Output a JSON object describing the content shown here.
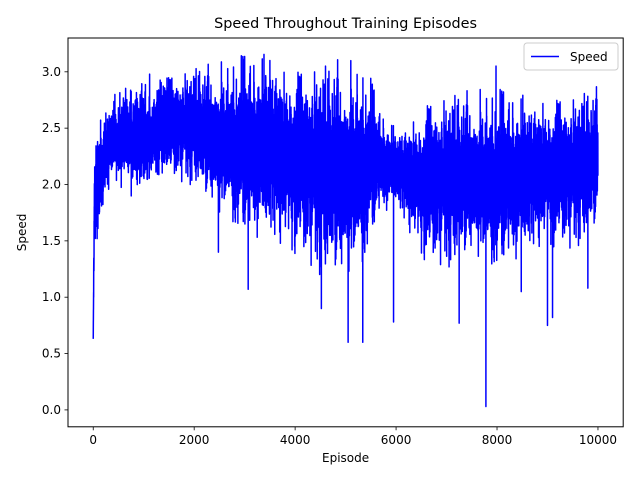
{
  "chart_data": {
    "type": "line",
    "title": "Speed Throughout Training Episodes",
    "xlabel": "Episode",
    "ylabel": "Speed",
    "xlim": [
      -500,
      10500
    ],
    "ylim": [
      -0.15,
      3.3
    ],
    "xticks": [
      0,
      2000,
      4000,
      6000,
      8000,
      10000
    ],
    "xtick_labels": [
      "0",
      "2000",
      "4000",
      "6000",
      "8000",
      "10000"
    ],
    "yticks": [
      0.0,
      0.5,
      1.0,
      1.5,
      2.0,
      2.5,
      3.0
    ],
    "ytick_labels": [
      "0.0",
      "0.5",
      "1.0",
      "1.5",
      "2.0",
      "2.5",
      "3.0"
    ],
    "grid": false,
    "legend_position": "upper right",
    "series": [
      {
        "name": "Speed",
        "color": "#0000ff",
        "n_points": 10000,
        "envelope": {
          "x": [
            0,
            20,
            50,
            100,
            200,
            400,
            700,
            1000,
            1500,
            2000,
            2500,
            3000,
            3500,
            4000,
            4500,
            5000,
            5300,
            5500,
            5700,
            6000,
            6300,
            6600,
            7000,
            7500,
            7800,
            8000,
            8500,
            9000,
            9500,
            10000
          ],
          "low": [
            0.62,
            1.3,
            1.45,
            1.5,
            1.85,
            2.1,
            1.95,
            1.95,
            2.1,
            2.05,
            1.75,
            1.65,
            1.6,
            1.5,
            1.3,
            1.2,
            1.3,
            1.6,
            1.8,
            1.85,
            1.6,
            1.4,
            1.35,
            1.4,
            1.3,
            1.35,
            1.45,
            1.55,
            1.5,
            1.65
          ],
          "high": [
            0.65,
            2.2,
            2.45,
            2.5,
            2.6,
            2.75,
            2.85,
            2.9,
            2.95,
            3.0,
            3.0,
            3.05,
            3.05,
            3.0,
            3.0,
            3.0,
            2.95,
            2.85,
            2.6,
            2.45,
            2.55,
            2.7,
            2.75,
            2.75,
            2.75,
            2.75,
            2.7,
            2.75,
            2.75,
            2.8
          ]
        },
        "spikes": [
          {
            "x": 0,
            "y": 0.63
          },
          {
            "x": 2480,
            "y": 1.4
          },
          {
            "x": 3070,
            "y": 1.07
          },
          {
            "x": 4520,
            "y": 0.9
          },
          {
            "x": 5050,
            "y": 0.6
          },
          {
            "x": 5340,
            "y": 0.6
          },
          {
            "x": 5950,
            "y": 0.78
          },
          {
            "x": 7250,
            "y": 0.77
          },
          {
            "x": 7780,
            "y": 0.03
          },
          {
            "x": 8480,
            "y": 1.05
          },
          {
            "x": 9000,
            "y": 0.75
          },
          {
            "x": 9100,
            "y": 0.82
          },
          {
            "x": 9800,
            "y": 1.08
          },
          {
            "x": 3500,
            "y": 3.1
          },
          {
            "x": 7980,
            "y": 3.05
          }
        ]
      }
    ]
  }
}
